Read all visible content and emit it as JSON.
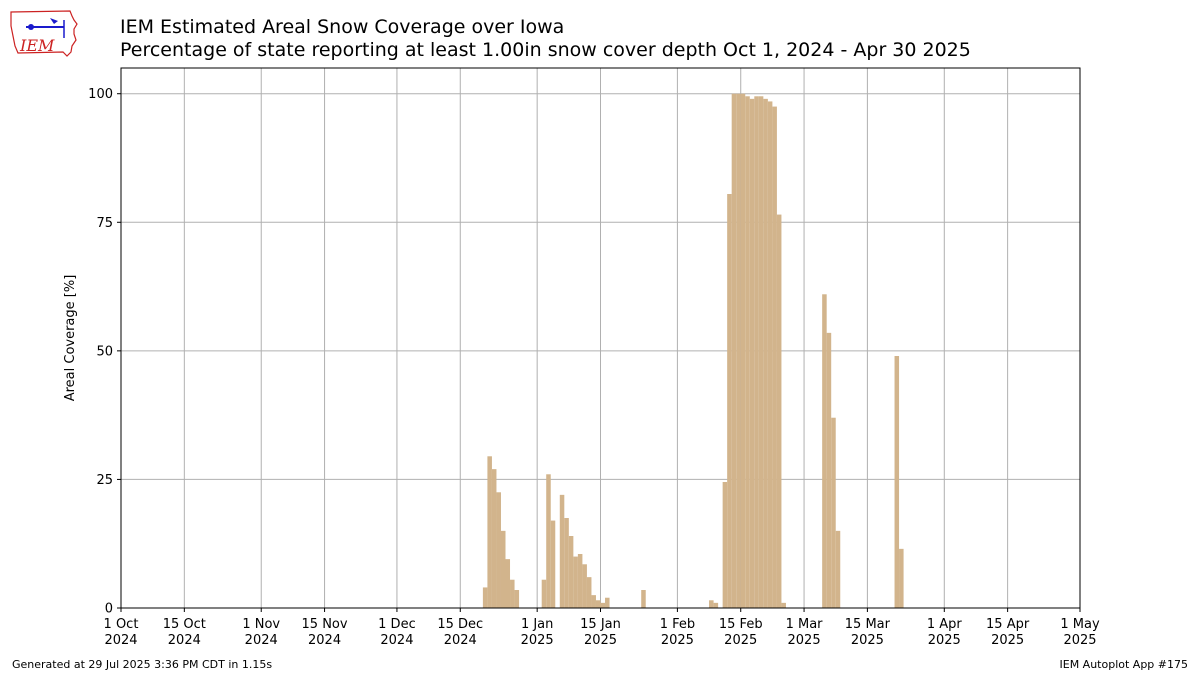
{
  "header": {
    "title": "IEM Estimated Areal Snow Coverage over Iowa",
    "subtitle": "Percentage of state reporting at least 1.00in snow cover depth Oct 1, 2024 - Apr 30 2025",
    "logo_text": "IEM"
  },
  "footer": {
    "generated": "Generated at 29 Jul 2025 3:36 PM CDT in 1.15s",
    "app": "IEM Autoplot App #175"
  },
  "colors": {
    "bar": "#d2b48c",
    "grid": "#b0b0b0",
    "logo_red": "#cc2222",
    "logo_blue": "#1a1acc"
  },
  "chart_data": {
    "type": "bar",
    "title": "IEM Estimated Areal Snow Coverage over Iowa",
    "subtitle": "Percentage of state reporting at least 1.00in snow cover depth Oct 1, 2024 - Apr 30 2025",
    "ylabel": "Areal Coverage [%]",
    "xlabel": "",
    "xlim": [
      "2024-10-01",
      "2025-05-01"
    ],
    "ylim": [
      0,
      105
    ],
    "grid": true,
    "y_ticks": [
      0,
      25,
      50,
      75,
      100
    ],
    "x_ticks": [
      {
        "date": "2024-10-01",
        "line1": "1 Oct",
        "line2": "2024"
      },
      {
        "date": "2024-10-15",
        "line1": "15 Oct",
        "line2": "2024"
      },
      {
        "date": "2024-11-01",
        "line1": "1 Nov",
        "line2": "2024"
      },
      {
        "date": "2024-11-15",
        "line1": "15 Nov",
        "line2": "2024"
      },
      {
        "date": "2024-12-01",
        "line1": "1 Dec",
        "line2": "2024"
      },
      {
        "date": "2024-12-15",
        "line1": "15 Dec",
        "line2": "2024"
      },
      {
        "date": "2025-01-01",
        "line1": "1 Jan",
        "line2": "2025"
      },
      {
        "date": "2025-01-15",
        "line1": "15 Jan",
        "line2": "2025"
      },
      {
        "date": "2025-02-01",
        "line1": "1 Feb",
        "line2": "2025"
      },
      {
        "date": "2025-02-15",
        "line1": "15 Feb",
        "line2": "2025"
      },
      {
        "date": "2025-03-01",
        "line1": "1 Mar",
        "line2": "2025"
      },
      {
        "date": "2025-03-15",
        "line1": "15 Mar",
        "line2": "2025"
      },
      {
        "date": "2025-04-01",
        "line1": "1 Apr",
        "line2": "2025"
      },
      {
        "date": "2025-04-15",
        "line1": "15 Apr",
        "line2": "2025"
      },
      {
        "date": "2025-05-01",
        "line1": "1 May",
        "line2": "2025"
      }
    ],
    "points": [
      {
        "x": "2024-12-20",
        "y": 4
      },
      {
        "x": "2024-12-21",
        "y": 29.5
      },
      {
        "x": "2024-12-22",
        "y": 27
      },
      {
        "x": "2024-12-23",
        "y": 22.5
      },
      {
        "x": "2024-12-24",
        "y": 15
      },
      {
        "x": "2024-12-25",
        "y": 9.5
      },
      {
        "x": "2024-12-26",
        "y": 5.5
      },
      {
        "x": "2024-12-27",
        "y": 3.5
      },
      {
        "x": "2025-01-02",
        "y": 5.5
      },
      {
        "x": "2025-01-03",
        "y": 26
      },
      {
        "x": "2025-01-04",
        "y": 17
      },
      {
        "x": "2025-01-06",
        "y": 22
      },
      {
        "x": "2025-01-07",
        "y": 17.5
      },
      {
        "x": "2025-01-08",
        "y": 14
      },
      {
        "x": "2025-01-09",
        "y": 10
      },
      {
        "x": "2025-01-10",
        "y": 10.5
      },
      {
        "x": "2025-01-11",
        "y": 8.5
      },
      {
        "x": "2025-01-12",
        "y": 6
      },
      {
        "x": "2025-01-13",
        "y": 2.5
      },
      {
        "x": "2025-01-14",
        "y": 1.5
      },
      {
        "x": "2025-01-15",
        "y": 1
      },
      {
        "x": "2025-01-16",
        "y": 2
      },
      {
        "x": "2025-01-24",
        "y": 3.5
      },
      {
        "x": "2025-02-08",
        "y": 1.5
      },
      {
        "x": "2025-02-09",
        "y": 1
      },
      {
        "x": "2025-02-11",
        "y": 24.5
      },
      {
        "x": "2025-02-12",
        "y": 80.5
      },
      {
        "x": "2025-02-13",
        "y": 100
      },
      {
        "x": "2025-02-14",
        "y": 100
      },
      {
        "x": "2025-02-15",
        "y": 100
      },
      {
        "x": "2025-02-16",
        "y": 99.5
      },
      {
        "x": "2025-02-17",
        "y": 99
      },
      {
        "x": "2025-02-18",
        "y": 99.5
      },
      {
        "x": "2025-02-19",
        "y": 99.5
      },
      {
        "x": "2025-02-20",
        "y": 99
      },
      {
        "x": "2025-02-21",
        "y": 98.5
      },
      {
        "x": "2025-02-22",
        "y": 97.5
      },
      {
        "x": "2025-02-23",
        "y": 76.5
      },
      {
        "x": "2025-02-24",
        "y": 1
      },
      {
        "x": "2025-03-05",
        "y": 61
      },
      {
        "x": "2025-03-06",
        "y": 53.5
      },
      {
        "x": "2025-03-07",
        "y": 37
      },
      {
        "x": "2025-03-08",
        "y": 15
      },
      {
        "x": "2025-03-21",
        "y": 49
      },
      {
        "x": "2025-03-22",
        "y": 11.5
      }
    ]
  }
}
